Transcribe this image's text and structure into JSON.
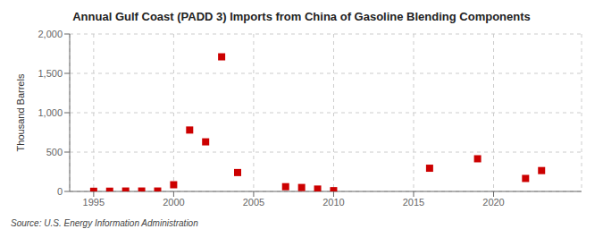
{
  "chart_data": {
    "type": "scatter",
    "title": "Annual Gulf Coast (PADD 3) Imports from China of Gasoline Blending Components",
    "ylabel": "Thousand Barrels",
    "annotation": "Source: U.S. Energy Information Administration",
    "x": [
      1995,
      1996,
      1997,
      1998,
      1999,
      2000,
      2001,
      2002,
      2003,
      2004,
      2007,
      2008,
      2009,
      2010,
      2016,
      2019,
      2022,
      2023
    ],
    "values": [
      2,
      3,
      5,
      5,
      5,
      85,
      780,
      630,
      1710,
      240,
      60,
      50,
      30,
      10,
      295,
      415,
      165,
      265
    ],
    "color": "#cc0000",
    "marker": "square",
    "xlim": [
      1993.5,
      2025.5
    ],
    "xticks": [
      1995,
      2000,
      2005,
      2010,
      2015,
      2020
    ],
    "ylim": [
      0,
      2000
    ],
    "yticks": [
      0,
      500,
      {
        "value": 1000,
        "label": "1,000"
      },
      {
        "value": 1500,
        "label": "1,500"
      },
      {
        "value": 2000,
        "label": "2,000"
      }
    ],
    "grid": true
  }
}
